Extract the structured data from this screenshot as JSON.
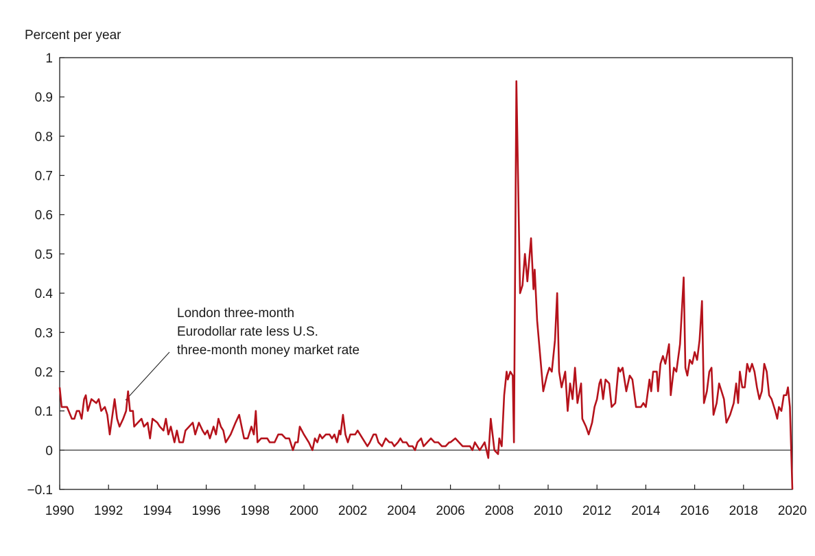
{
  "chart_data": {
    "type": "line",
    "y_label": "Percent per year",
    "annotation": [
      "London three-month",
      "Eurodollar rate less U.S.",
      "three-month money market rate"
    ],
    "xlim": [
      1990,
      2020
    ],
    "xticks": [
      1990,
      1992,
      1994,
      1996,
      1998,
      2000,
      2002,
      2004,
      2006,
      2008,
      2010,
      2012,
      2014,
      2016,
      2018,
      2020
    ],
    "ylim": [
      -0.1,
      1
    ],
    "yticks": [
      {
        "value": -0.1,
        "label": "−0.1"
      },
      0,
      0.1,
      0.2,
      0.3,
      0.4,
      0.5,
      0.6,
      0.7,
      0.8,
      0.9,
      1
    ],
    "reference_line": 0,
    "series": [
      {
        "color": "#b5121b",
        "x": [
          1990.0,
          1990.08,
          1990.3,
          1990.5,
          1990.6,
          1990.7,
          1990.8,
          1990.9,
          1991.0,
          1991.07,
          1991.15,
          1991.3,
          1991.5,
          1991.6,
          1991.7,
          1991.85,
          1991.95,
          1992.05,
          1992.25,
          1992.35,
          1992.45,
          1992.6,
          1992.72,
          1992.8,
          1992.88,
          1993.0,
          1993.05,
          1993.2,
          1993.35,
          1993.45,
          1993.6,
          1993.7,
          1993.8,
          1994.0,
          1994.1,
          1994.25,
          1994.35,
          1994.45,
          1994.55,
          1994.7,
          1994.8,
          1994.9,
          1995.05,
          1995.15,
          1995.3,
          1995.45,
          1995.55,
          1995.7,
          1995.85,
          1995.95,
          1996.05,
          1996.15,
          1996.3,
          1996.4,
          1996.5,
          1996.6,
          1996.7,
          1996.8,
          1997.0,
          1997.2,
          1997.35,
          1997.55,
          1997.7,
          1997.85,
          1997.95,
          1998.03,
          1998.1,
          1998.25,
          1998.5,
          1998.6,
          1998.8,
          1998.95,
          1999.1,
          1999.25,
          1999.4,
          1999.55,
          1999.65,
          1999.75,
          1999.83,
          2000.0,
          2000.2,
          2000.35,
          2000.45,
          2000.55,
          2000.65,
          2000.75,
          2000.9,
          2001.05,
          2001.15,
          2001.25,
          2001.35,
          2001.45,
          2001.5,
          2001.6,
          2001.7,
          2001.8,
          2001.9,
          2002.1,
          2002.2,
          2002.4,
          2002.6,
          2002.7,
          2002.85,
          2002.95,
          2003.05,
          2003.2,
          2003.35,
          2003.5,
          2003.6,
          2003.7,
          2003.85,
          2003.95,
          2004.05,
          2004.2,
          2004.3,
          2004.45,
          2004.55,
          2004.65,
          2004.8,
          2004.9,
          2005.05,
          2005.2,
          2005.35,
          2005.5,
          2005.65,
          2005.8,
          2005.95,
          2006.0,
          2006.2,
          2006.5,
          2006.8,
          2006.9,
          2007.0,
          2007.2,
          2007.4,
          2007.55,
          2007.65,
          2007.8,
          2007.95,
          2008.0,
          2008.1,
          2008.2,
          2008.3,
          2008.35,
          2008.45,
          2008.55,
          2008.6,
          2008.7,
          2008.85,
          2008.95,
          2009.05,
          2009.15,
          2009.3,
          2009.4,
          2009.45,
          2009.55,
          2009.8,
          2009.95,
          2010.05,
          2010.15,
          2010.28,
          2010.37,
          2010.45,
          2010.55,
          2010.7,
          2010.8,
          2010.9,
          2011.0,
          2011.1,
          2011.2,
          2011.35,
          2011.4,
          2011.55,
          2011.66,
          2011.8,
          2011.9,
          2012.0,
          2012.1,
          2012.16,
          2012.25,
          2012.35,
          2012.5,
          2012.6,
          2012.75,
          2012.88,
          2012.95,
          2013.05,
          2013.2,
          2013.34,
          2013.45,
          2013.6,
          2013.8,
          2013.9,
          2014.0,
          2014.15,
          2014.22,
          2014.3,
          2014.45,
          2014.5,
          2014.6,
          2014.7,
          2014.8,
          2014.95,
          2015.02,
          2015.15,
          2015.25,
          2015.4,
          2015.55,
          2015.62,
          2015.7,
          2015.8,
          2015.9,
          2016.0,
          2016.1,
          2016.2,
          2016.3,
          2016.38,
          2016.5,
          2016.6,
          2016.69,
          2016.77,
          2016.9,
          2017.0,
          2017.1,
          2017.2,
          2017.3,
          2017.45,
          2017.6,
          2017.7,
          2017.78,
          2017.85,
          2017.95,
          2018.05,
          2018.15,
          2018.25,
          2018.35,
          2018.45,
          2018.55,
          2018.65,
          2018.75,
          2018.85,
          2018.95,
          2019.05,
          2019.15,
          2019.3,
          2019.38,
          2019.45,
          2019.55,
          2019.65,
          2019.75,
          2019.82,
          2019.9,
          2020.0
        ],
        "values": [
          0.16,
          0.11,
          0.11,
          0.08,
          0.08,
          0.1,
          0.1,
          0.08,
          0.13,
          0.14,
          0.1,
          0.13,
          0.12,
          0.13,
          0.1,
          0.11,
          0.09,
          0.04,
          0.13,
          0.08,
          0.06,
          0.08,
          0.1,
          0.15,
          0.1,
          0.1,
          0.06,
          0.07,
          0.08,
          0.06,
          0.07,
          0.03,
          0.08,
          0.07,
          0.06,
          0.05,
          0.08,
          0.04,
          0.06,
          0.02,
          0.05,
          0.02,
          0.02,
          0.05,
          0.06,
          0.07,
          0.04,
          0.07,
          0.05,
          0.04,
          0.05,
          0.03,
          0.06,
          0.04,
          0.08,
          0.06,
          0.05,
          0.02,
          0.04,
          0.07,
          0.09,
          0.03,
          0.03,
          0.06,
          0.04,
          0.1,
          0.02,
          0.03,
          0.03,
          0.02,
          0.02,
          0.04,
          0.04,
          0.03,
          0.03,
          0.0,
          0.02,
          0.02,
          0.06,
          0.04,
          0.02,
          0.0,
          0.03,
          0.02,
          0.04,
          0.03,
          0.04,
          0.04,
          0.03,
          0.04,
          0.02,
          0.05,
          0.04,
          0.09,
          0.04,
          0.02,
          0.04,
          0.04,
          0.05,
          0.03,
          0.01,
          0.02,
          0.04,
          0.04,
          0.02,
          0.01,
          0.03,
          0.02,
          0.02,
          0.01,
          0.02,
          0.03,
          0.02,
          0.02,
          0.01,
          0.01,
          0.0,
          0.02,
          0.03,
          0.01,
          0.02,
          0.03,
          0.02,
          0.02,
          0.01,
          0.01,
          0.02,
          0.02,
          0.03,
          0.01,
          0.01,
          0.0,
          0.02,
          0.0,
          0.02,
          -0.02,
          0.08,
          0.0,
          -0.01,
          0.03,
          0.01,
          0.14,
          0.2,
          0.18,
          0.2,
          0.19,
          0.02,
          0.94,
          0.4,
          0.42,
          0.5,
          0.43,
          0.54,
          0.41,
          0.46,
          0.33,
          0.15,
          0.19,
          0.21,
          0.2,
          0.28,
          0.4,
          0.2,
          0.16,
          0.2,
          0.1,
          0.17,
          0.13,
          0.21,
          0.12,
          0.17,
          0.08,
          0.06,
          0.04,
          0.07,
          0.11,
          0.13,
          0.17,
          0.18,
          0.13,
          0.18,
          0.17,
          0.11,
          0.12,
          0.21,
          0.2,
          0.21,
          0.15,
          0.19,
          0.18,
          0.11,
          0.11,
          0.12,
          0.11,
          0.18,
          0.15,
          0.2,
          0.2,
          0.15,
          0.22,
          0.24,
          0.22,
          0.27,
          0.14,
          0.21,
          0.2,
          0.27,
          0.44,
          0.21,
          0.19,
          0.23,
          0.22,
          0.25,
          0.23,
          0.28,
          0.38,
          0.12,
          0.15,
          0.2,
          0.21,
          0.09,
          0.12,
          0.17,
          0.15,
          0.13,
          0.07,
          0.09,
          0.12,
          0.17,
          0.12,
          0.2,
          0.16,
          0.16,
          0.22,
          0.2,
          0.22,
          0.2,
          0.16,
          0.13,
          0.15,
          0.22,
          0.2,
          0.14,
          0.13,
          0.1,
          0.08,
          0.11,
          0.1,
          0.14,
          0.14,
          0.16,
          0.11,
          -0.1
        ]
      }
    ]
  }
}
